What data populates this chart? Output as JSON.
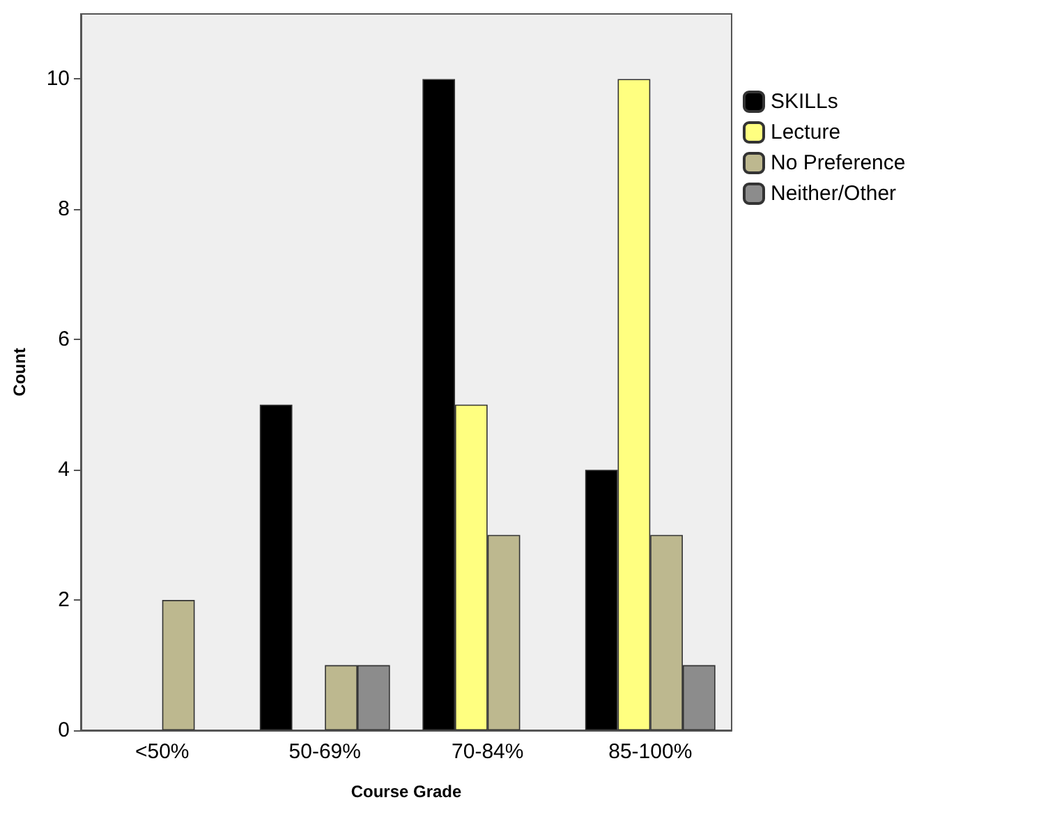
{
  "chart_data": {
    "type": "bar",
    "xlabel": "Course Grade",
    "ylabel": "Count",
    "categories": [
      "<50%",
      "50-69%",
      "70-84%",
      "85-100%"
    ],
    "series": [
      {
        "name": "SKILLs",
        "color": "#000000",
        "values": [
          null,
          5,
          10,
          4
        ]
      },
      {
        "name": "Lecture",
        "color": "#ffff80",
        "values": [
          null,
          null,
          5,
          10
        ]
      },
      {
        "name": "No Preference",
        "color": "#bdb88f",
        "values": [
          2,
          1,
          3,
          3
        ]
      },
      {
        "name": "Neither/Other",
        "color": "#8c8c8c",
        "values": [
          null,
          1,
          null,
          1
        ]
      }
    ],
    "ylim": [
      0,
      11
    ],
    "yticks": [
      0,
      2,
      4,
      6,
      8,
      10
    ],
    "grid": false,
    "legend": "top right"
  }
}
